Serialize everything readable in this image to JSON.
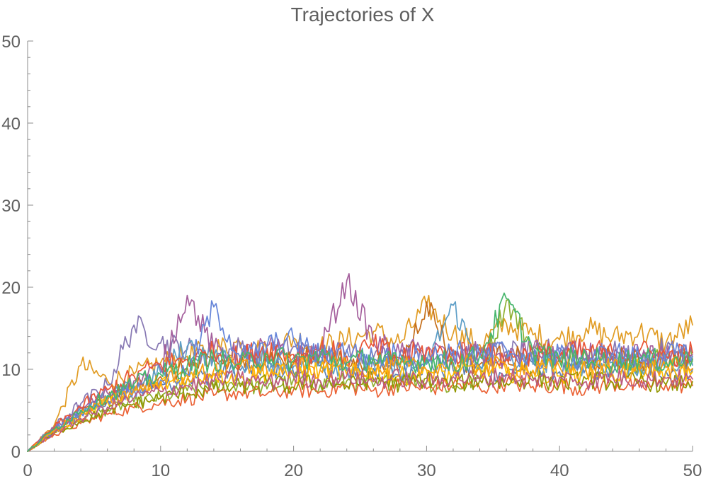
{
  "chart_data": {
    "type": "line",
    "title": "Trajectories of X",
    "xlabel": "",
    "ylabel": "",
    "xlim": [
      0,
      50
    ],
    "ylim": [
      0,
      50
    ],
    "x_ticks": [
      0,
      10,
      20,
      30,
      40,
      50
    ],
    "y_ticks": [
      0,
      10,
      20,
      30,
      40,
      50
    ],
    "x_tick_labels": [
      "0",
      "10",
      "20",
      "30",
      "40",
      "50"
    ],
    "y_tick_labels": [
      "0",
      "10",
      "20",
      "30",
      "40",
      "50"
    ],
    "grid": false,
    "legend": "none",
    "palette": [
      "#5e81b5",
      "#e19c24",
      "#8fb032",
      "#eb6235",
      "#8778b3",
      "#c56e1a",
      "#5d9ec7",
      "#ffbf00",
      "#a5609d",
      "#929600",
      "#e95536",
      "#6685d9",
      "#f89f13",
      "#bc5b80",
      "#47b66d"
    ],
    "series": [
      {
        "x": [
          0,
          2,
          4,
          6,
          8,
          10,
          12,
          14,
          16,
          18,
          20,
          22,
          24,
          26,
          28,
          30,
          32,
          34,
          36,
          38,
          40,
          42,
          44,
          46,
          48,
          50
        ],
        "values": [
          0,
          2.6,
          4.8,
          6.2,
          7.4,
          8.3,
          8.8,
          9.4,
          9.9,
          10.2,
          9.6,
          10.4,
          9.8,
          10.1,
          9.3,
          10.6,
          9.9,
          10.2,
          9.4,
          10.8,
          9.7,
          10.1,
          9.5,
          10.3,
          9.8,
          10.0
        ]
      },
      {
        "x": [
          0,
          2,
          4,
          6,
          8,
          10,
          12,
          14,
          16,
          18,
          20,
          22,
          24,
          26,
          28,
          30,
          32,
          34,
          36,
          38,
          40,
          42,
          44,
          46,
          48,
          50
        ],
        "values": [
          0,
          3.2,
          10.5,
          8.6,
          9.4,
          10.8,
          11.6,
          12.4,
          13.2,
          12.0,
          13.8,
          12.6,
          13.5,
          14.6,
          13.2,
          17.8,
          14.4,
          13.0,
          15.6,
          14.2,
          13.6,
          15.0,
          13.8,
          14.6,
          13.2,
          15.4
        ]
      },
      {
        "x": [
          0,
          2,
          4,
          6,
          8,
          10,
          12,
          14,
          16,
          18,
          20,
          22,
          24,
          26,
          28,
          30,
          32,
          34,
          36,
          38,
          40,
          42,
          44,
          46,
          48,
          50
        ],
        "values": [
          0,
          2.3,
          3.9,
          5.1,
          6.0,
          6.6,
          7.4,
          7.9,
          8.3,
          7.6,
          8.8,
          8.1,
          8.6,
          7.9,
          9.0,
          8.4,
          7.7,
          8.9,
          18.4,
          12.6,
          10.9,
          12.2,
          11.4,
          10.6,
          11.8,
          11.2
        ]
      },
      {
        "x": [
          0,
          2,
          4,
          6,
          8,
          10,
          12,
          14,
          16,
          18,
          20,
          22,
          24,
          26,
          28,
          30,
          32,
          34,
          36,
          38,
          40,
          42,
          44,
          46,
          48,
          50
        ],
        "values": [
          0,
          2.1,
          3.4,
          4.5,
          5.3,
          5.9,
          6.4,
          6.8,
          7.2,
          7.0,
          7.5,
          7.3,
          7.9,
          7.4,
          8.0,
          7.6,
          8.2,
          7.7,
          8.4,
          7.9,
          8.1,
          7.6,
          8.3,
          7.8,
          8.2,
          8.0
        ]
      },
      {
        "x": [
          0,
          2,
          4,
          6,
          8,
          10,
          12,
          14,
          16,
          18,
          20,
          22,
          24,
          26,
          28,
          30,
          32,
          34,
          36,
          38,
          40,
          42,
          44,
          46,
          48,
          50
        ],
        "values": [
          0,
          3.0,
          5.8,
          8.1,
          15.4,
          13.2,
          12.4,
          11.8,
          12.6,
          11.2,
          12.8,
          11.6,
          12.2,
          11.4,
          12.0,
          11.0,
          12.4,
          11.6,
          12.2,
          11.8,
          12.6,
          11.4,
          12.0,
          11.2,
          12.4,
          12.0
        ]
      },
      {
        "x": [
          0,
          2,
          4,
          6,
          8,
          10,
          12,
          14,
          16,
          18,
          20,
          22,
          24,
          26,
          28,
          30,
          32,
          34,
          36,
          38,
          40,
          42,
          44,
          46,
          48,
          50
        ],
        "values": [
          0,
          2.5,
          4.6,
          6.4,
          7.8,
          9.1,
          10.2,
          11.0,
          10.4,
          11.6,
          10.8,
          11.9,
          10.6,
          11.4,
          10.2,
          18.2,
          11.2,
          10.6,
          11.8,
          10.9,
          11.4,
          10.7,
          11.6,
          10.8,
          11.2,
          11.0
        ]
      },
      {
        "x": [
          0,
          2,
          4,
          6,
          8,
          10,
          12,
          14,
          16,
          18,
          20,
          22,
          24,
          26,
          28,
          30,
          32,
          34,
          36,
          38,
          40,
          42,
          44,
          46,
          48,
          50
        ],
        "values": [
          0,
          2.7,
          4.9,
          6.6,
          8.0,
          9.6,
          12.8,
          11.4,
          10.6,
          11.2,
          10.4,
          11.0,
          10.2,
          10.8,
          9.8,
          10.6,
          17.8,
          10.4,
          11.2,
          10.6,
          11.0,
          10.4,
          10.9,
          10.2,
          10.7,
          10.5
        ]
      },
      {
        "x": [
          0,
          2,
          4,
          6,
          8,
          10,
          12,
          14,
          16,
          18,
          20,
          22,
          24,
          26,
          28,
          30,
          32,
          34,
          36,
          38,
          40,
          42,
          44,
          46,
          48,
          50
        ],
        "values": [
          0,
          2.4,
          4.4,
          6.0,
          7.2,
          8.1,
          8.9,
          9.5,
          9.0,
          9.8,
          9.2,
          10.0,
          9.4,
          9.8,
          9.1,
          9.9,
          9.3,
          10.1,
          9.5,
          9.9,
          9.2,
          9.8,
          9.4,
          10.0,
          9.6,
          9.7
        ]
      },
      {
        "x": [
          0,
          2,
          4,
          6,
          8,
          10,
          12,
          14,
          16,
          18,
          20,
          22,
          24,
          26,
          28,
          30,
          32,
          34,
          36,
          38,
          40,
          42,
          44,
          46,
          48,
          50
        ],
        "values": [
          0,
          2.8,
          5.2,
          7.1,
          8.6,
          10.1,
          19.0,
          12.4,
          11.6,
          12.8,
          11.4,
          12.2,
          20.8,
          13.4,
          11.8,
          12.6,
          11.4,
          12.0,
          11.2,
          12.4,
          11.6,
          12.2,
          11.0,
          12.0,
          11.4,
          11.8
        ]
      },
      {
        "x": [
          0,
          2,
          4,
          6,
          8,
          10,
          12,
          14,
          16,
          18,
          20,
          22,
          24,
          26,
          28,
          30,
          32,
          34,
          36,
          38,
          40,
          42,
          44,
          46,
          48,
          50
        ],
        "values": [
          0,
          2.2,
          3.7,
          4.9,
          5.8,
          6.5,
          7.1,
          7.6,
          7.9,
          8.4,
          7.8,
          8.6,
          8.0,
          8.8,
          8.2,
          8.9,
          8.1,
          8.7,
          8.3,
          8.9,
          8.2,
          8.8,
          8.4,
          8.6,
          8.1,
          8.5
        ]
      },
      {
        "x": [
          0,
          2,
          4,
          6,
          8,
          10,
          12,
          14,
          16,
          18,
          20,
          22,
          24,
          26,
          28,
          30,
          32,
          34,
          36,
          38,
          40,
          42,
          44,
          46,
          48,
          50
        ],
        "values": [
          0,
          2.9,
          5.4,
          7.5,
          9.2,
          10.6,
          11.2,
          12.0,
          11.4,
          12.6,
          11.8,
          12.4,
          11.6,
          12.8,
          11.4,
          12.2,
          11.8,
          12.6,
          11.2,
          12.0,
          11.6,
          12.4,
          11.8,
          12.2,
          11.6,
          12.0
        ]
      },
      {
        "x": [
          0,
          2,
          4,
          6,
          8,
          10,
          12,
          14,
          16,
          18,
          20,
          22,
          24,
          26,
          28,
          30,
          32,
          34,
          36,
          38,
          40,
          42,
          44,
          46,
          48,
          50
        ],
        "values": [
          0,
          2.6,
          4.7,
          6.3,
          7.6,
          8.7,
          9.4,
          17.6,
          11.4,
          12.8,
          13.6,
          11.6,
          12.4,
          11.2,
          12.0,
          11.4,
          12.2,
          11.6,
          12.4,
          11.0,
          11.8,
          11.2,
          12.0,
          11.4,
          11.8,
          11.6
        ]
      },
      {
        "x": [
          0,
          2,
          4,
          6,
          8,
          10,
          12,
          14,
          16,
          18,
          20,
          22,
          24,
          26,
          28,
          30,
          32,
          34,
          36,
          38,
          40,
          42,
          44,
          46,
          48,
          50
        ],
        "values": [
          0,
          2.5,
          4.5,
          6.1,
          7.4,
          8.5,
          9.3,
          9.9,
          10.4,
          9.8,
          10.6,
          9.9,
          10.5,
          9.7,
          10.4,
          9.9,
          10.7,
          10.1,
          10.5,
          9.8,
          10.3,
          9.7,
          10.4,
          9.9,
          10.2,
          10.1
        ]
      },
      {
        "x": [
          0,
          2,
          4,
          6,
          8,
          10,
          12,
          14,
          16,
          18,
          20,
          22,
          24,
          26,
          28,
          30,
          32,
          34,
          36,
          38,
          40,
          42,
          44,
          46,
          48,
          50
        ],
        "values": [
          0,
          2.3,
          4.0,
          5.4,
          6.5,
          7.3,
          8.0,
          8.5,
          8.9,
          8.3,
          9.1,
          8.6,
          9.2,
          8.5,
          9.0,
          8.4,
          9.1,
          8.7,
          9.3,
          8.6,
          9.0,
          8.5,
          9.1,
          8.7,
          8.9,
          8.8
        ]
      },
      {
        "x": [
          0,
          2,
          4,
          6,
          8,
          10,
          12,
          14,
          16,
          18,
          20,
          22,
          24,
          26,
          28,
          30,
          32,
          34,
          36,
          38,
          40,
          42,
          44,
          46,
          48,
          50
        ],
        "values": [
          0,
          2.7,
          5.0,
          6.8,
          8.2,
          9.4,
          10.4,
          11.2,
          10.6,
          11.8,
          11.0,
          11.6,
          10.8,
          11.4,
          10.6,
          11.2,
          10.8,
          11.6,
          18.6,
          12.2,
          11.0,
          11.6,
          10.8,
          11.4,
          10.9,
          11.2
        ]
      }
    ]
  }
}
